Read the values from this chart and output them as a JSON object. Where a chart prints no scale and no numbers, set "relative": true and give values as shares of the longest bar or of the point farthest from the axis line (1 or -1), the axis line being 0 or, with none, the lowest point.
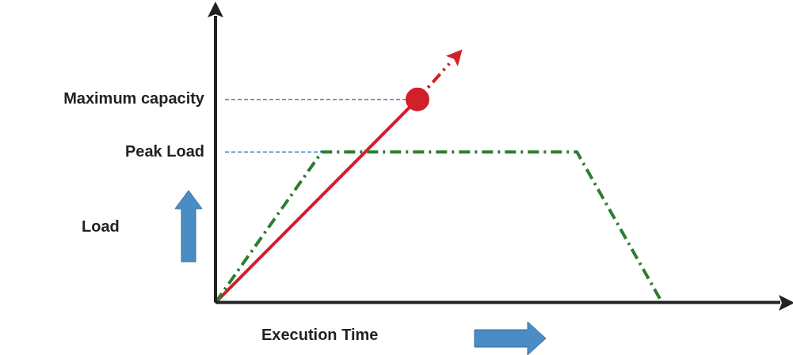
{
  "chart_data": {
    "type": "line",
    "relative": true,
    "xlabel": "Execution Time",
    "annotations": [
      "Load"
    ],
    "legend": false,
    "categories": [
      null,
      null,
      null,
      null,
      null,
      null,
      null,
      null,
      null,
      null,
      null,
      null,
      null,
      null,
      null,
      null,
      null,
      null,
      null,
      null,
      null,
      null,
      null,
      null,
      null,
      null,
      null,
      null,
      null,
      null,
      null,
      null,
      null,
      null,
      null,
      null,
      null,
      null,
      null,
      null,
      null,
      null,
      null,
      null,
      null,
      null,
      null,
      null,
      null,
      null,
      null
    ],
    "series": [
      {
        "color": "#2e7d32",
        "line_style": "dashed",
        "marker": "none",
        "values": [
          0,
          null,
          null,
          null,
          null,
          null,
          null,
          null,
          null,
          null,
          0.63,
          null,
          null,
          null,
          null,
          null,
          null,
          null,
          null,
          null,
          null,
          null,
          null,
          null,
          null,
          null,
          null,
          null,
          null,
          null,
          null,
          null,
          null,
          null,
          0.63,
          null,
          null,
          null,
          null,
          null,
          null,
          null,
          0,
          null,
          null,
          null,
          null,
          null,
          null,
          null,
          null
        ]
      },
      {
        "color": "#d0202a",
        "line_style": "solid",
        "marker": "circle",
        "values": [
          0,
          null,
          null,
          null,
          null,
          null,
          null,
          null,
          null,
          null,
          null,
          null,
          null,
          null,
          null,
          null,
          null,
          null,
          null,
          0.85,
          null,
          null,
          null,
          null,
          null,
          null,
          null,
          null,
          null,
          null,
          null,
          null,
          null,
          null,
          null,
          null,
          null,
          null,
          null,
          null,
          null,
          null,
          null,
          null,
          null,
          null,
          null,
          null,
          null,
          null,
          null
        ]
      },
      {
        "color": "#d0202a",
        "line_style": "dashed",
        "marker": "none",
        "values": [
          null,
          null,
          null,
          null,
          null,
          null,
          null,
          null,
          null,
          null,
          null,
          null,
          null,
          null,
          null,
          null,
          null,
          null,
          null,
          0.85,
          null,
          null,
          1,
          null,
          null,
          null,
          null,
          null,
          null,
          null,
          null,
          null,
          null,
          null,
          null,
          null,
          null,
          null,
          null,
          null,
          null,
          null,
          null,
          null,
          null,
          null,
          null,
          null,
          null,
          null,
          null
        ]
      }
    ],
    "ref_lines": [
      {
        "axis": "y",
        "value": 0.85,
        "label": "Maximum capacity",
        "color": "#3a86d4",
        "line_style": "dashed"
      },
      {
        "axis": "y",
        "value": 0.63,
        "label": "Peak Load",
        "color": "#3a86d4",
        "line_style": "dashed"
      }
    ]
  }
}
